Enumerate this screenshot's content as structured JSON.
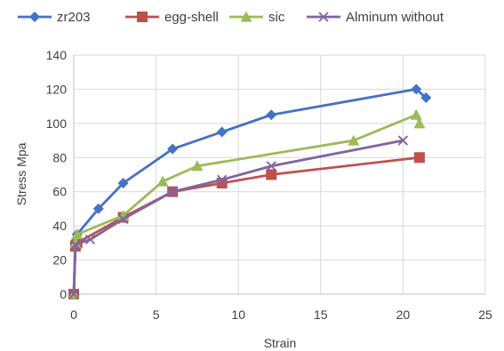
{
  "chart_data": {
    "type": "line",
    "title": "",
    "xlabel": "Strain",
    "ylabel": "Stress Mpa",
    "xlim": [
      0,
      25
    ],
    "ylim": [
      0,
      140
    ],
    "xticks": [
      0,
      5,
      10,
      15,
      20,
      25
    ],
    "yticks": [
      0,
      20,
      40,
      60,
      80,
      100,
      120,
      140
    ],
    "grid": "both",
    "legend_position": "top",
    "series": [
      {
        "name": "zr203",
        "color": "#4472C4",
        "marker": "diamond",
        "points": [
          [
            0,
            0
          ],
          [
            0.1,
            30
          ],
          [
            0.2,
            35
          ],
          [
            1.5,
            50
          ],
          [
            3,
            65
          ],
          [
            6,
            85
          ],
          [
            9,
            95
          ],
          [
            12,
            105
          ],
          [
            20.8,
            120
          ],
          [
            21.4,
            115
          ]
        ]
      },
      {
        "name": "egg-shell",
        "color": "#C0504D",
        "marker": "square",
        "points": [
          [
            0,
            0
          ],
          [
            0.1,
            28
          ],
          [
            0.2,
            30
          ],
          [
            3,
            45
          ],
          [
            6,
            60
          ],
          [
            9,
            65
          ],
          [
            12,
            70
          ],
          [
            21,
            80
          ]
        ]
      },
      {
        "name": "sic",
        "color": "#9BBB59",
        "marker": "triangle",
        "points": [
          [
            0,
            0
          ],
          [
            0.1,
            30
          ],
          [
            0.2,
            35
          ],
          [
            3,
            46
          ],
          [
            5.4,
            66
          ],
          [
            7.5,
            75
          ],
          [
            17,
            90
          ],
          [
            20.8,
            105
          ],
          [
            21,
            100
          ]
        ]
      },
      {
        "name": "Alminum without",
        "color": "#8064A2",
        "marker": "x",
        "points": [
          [
            0,
            0
          ],
          [
            0.1,
            29
          ],
          [
            1,
            32
          ],
          [
            3,
            44
          ],
          [
            6,
            60
          ],
          [
            9,
            67
          ],
          [
            12,
            75
          ],
          [
            20,
            90
          ]
        ]
      }
    ]
  }
}
